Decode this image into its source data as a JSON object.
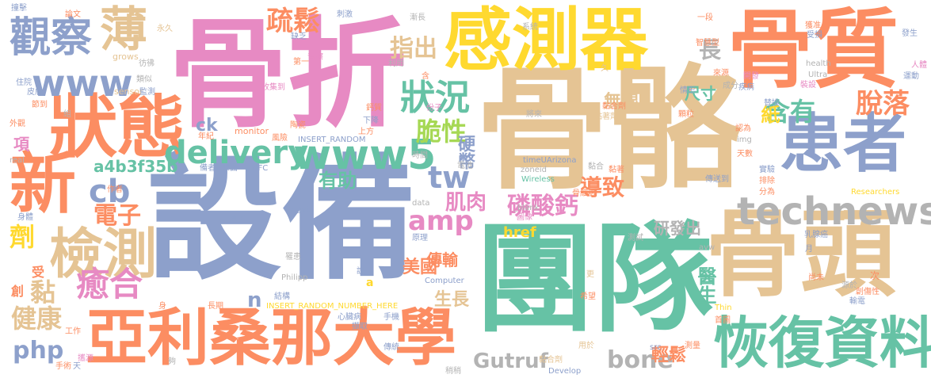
{
  "words": {
    "w_guzhe": "骨折",
    "w_shebei": "設備",
    "w_guge": "骨骼",
    "w_tuandui": "團隊",
    "w_guzhi": "骨質",
    "w_gantou": "骨頭",
    "w_ganceqi": "感測器",
    "w_zhuangtai": "狀態",
    "w_huanzhe": "患者",
    "w_arizona": "亞利桑那大學",
    "w_jiance": "檢測",
    "w_huifu": "恢復資料",
    "w_xin": "新",
    "w_guancha": "觀察",
    "w_bo": "薄",
    "w_www": "www",
    "w_delivery": "delivery",
    "w_www5": "www5",
    "w_technews": "technews",
    "w_zhuangkuang": "狀況",
    "w_cuixing": "脆性",
    "w_shusong": "疏鬆",
    "w_zhichu": "指出",
    "w_hanyou": "含有",
    "w_tuoluo": "脫落",
    "w_chang": "長",
    "w_chicun": "尺寸",
    "w_wuxian": "無線",
    "w_zhi": "紙",
    "w_yingbi": "硬幣",
    "w_ck": "ck",
    "w_cb": "cb",
    "w_xiang": "項",
    "w_hash": "a4b3f35b",
    "w_tw": "tw",
    "w_amp": "amp",
    "w_youzhu": "有助",
    "w_dianzi": "電子",
    "w_jirou": "肌肉",
    "w_linsuangai": "磷酸鈣",
    "w_daozhi": "導致",
    "w_yanfa": "研發出",
    "w_ji": "劑",
    "w_yuhe": "癒合",
    "w_nian": "黏",
    "w_jiankang": "健康",
    "w_php": "php",
    "w_meiguo": "美國",
    "w_href": "href",
    "w_chuanshu": "傳輸",
    "w_shengzhang": "生長",
    "w_yisheng": "醫生",
    "w_gutruf": "Gutruf",
    "w_bone": "bone",
    "w_qingsong": "輕鬆",
    "w_n": "n",
    "w_shou": "受",
    "w_chuang": "創",
    "w_a": "a",
    "s_zhuangji": "撞擊",
    "s_lunwen": "論文",
    "s_ciji": "刺激",
    "s_jianchang": "漸長",
    "s_xitong": "系統",
    "s_yiduan": "一段",
    "s_huozhun": "獲准",
    "s_shousun": "受損",
    "s_fasheng": "發生",
    "s_renlei": "人體",
    "s_yongjiu": "永久",
    "s_grows": "grows",
    "s_fangfo": "彷彿",
    "s_leisi": "類似",
    "s_zhuyuan": "住院",
    "s_sensor": "sensor",
    "s_pifu": "皮膚",
    "s_jiandian": "節到",
    "s_jiance2": "監測",
    "s_monitor": "monitor",
    "s_shoujidao": "收集到",
    "s_quefa": "缺乏",
    "s_diyi": "第一",
    "s_yinxiang": "音擦",
    "s_liyong": "利用",
    "s_han": "含",
    "s_jiu": "久",
    "s_fenzi": "份子",
    "s_jiangshang": "將來",
    "s_gaizhi": "鈣質",
    "s_xiajiang": "下降",
    "s_shangfang": "上方",
    "s_taozi": "陶瓷",
    "s_fengxian": "風險",
    "s_insert": "INSERT_RANDOM",
    "s_niandian": "黏著劑",
    "s_zhuangjuan": "顆粒",
    "s_zhihuixing": "智慧型",
    "s_laiyuan": "來源",
    "s_qingxing": "情形",
    "s_shizhuang": "裝設",
    "s_jibing": "疾病",
    "s_guanbi": "開發",
    "s_chengfen": "成分",
    "s_health": "health",
    "s_ultra": "Ultra",
    "s_yundong": "運動",
    "s_tihuan": "替換",
    "s_img": "img",
    "s_tianshu": "天數",
    "s_renwei": "認為",
    "s_waiguan": "外觀",
    "s_real": "real",
    "s_niandu": "年紀",
    "s_nianheji": "黏合劑",
    "s_shijian": "時間",
    "s_biaomian": "表面",
    "s_diannao": "電腦",
    "s_zuozhe": "作者",
    "s_beizhe": "備者",
    "s_nfc": "NFC",
    "s_timeu": "timeUArizona",
    "s_dianchi": "電池",
    "s_nianhe": "黏合",
    "s_nianzhuo": "黏著",
    "s_wireless": "Wireless",
    "s_zoneid": "zoneid",
    "s_blank": "_blank",
    "s_gutan": "骨細胞",
    "s_tuxiang": "圖像",
    "s_shiyan": "實驗",
    "s_paichu": "排除",
    "s_fenwei": "分為",
    "s_chuansongdao": "傳送到",
    "s_researchers": "Researchers",
    "s_shenti": "身體",
    "s_yuanzi": "原子",
    "s_target": "target",
    "s_data": "data",
    "s_yuanli": "原理",
    "s_luohuan": "罹患",
    "s_cesh": "測試",
    "s_avw": "avw",
    "s_ruxian": "乳腺癌",
    "s_yue": "月",
    "s_shang": "尚未",
    "s_ciji2": "次",
    "s_yuanyu": "源於",
    "s_chuangshang": "創傷性",
    "s_shuodian": "輸電",
    "s_philipp": "Philipp",
    "s_shuo": "說",
    "s_jiegou": "結構",
    "s_computer": "Computer",
    "s_geng": "更",
    "s_shen": "身",
    "s_changqi": "長期",
    "s_insert2": "INSERT_RANDOM_NUMBER_HERE",
    "s_xiwang": "希望",
    "s_thin": "Thin",
    "s_shouji": "手機",
    "s_xinzang": "心臟病",
    "s_shouye": "首圖",
    "s_gongzuo": "工作",
    "s_chuantong": "傳統",
    "s_shoushu": "手術",
    "s_tian": "天",
    "s_xiesu": "攜源",
    "s_qingwen": "擷取",
    "s_gou": "夠",
    "s_shaoke": "稍稍",
    "s_develop": "Develop",
    "s_yongyu": "用於",
    "s_celiang": "測量",
    "s_src": "src",
    "s_nianheji2": "黏合劑",
    "s_zu": "組"
  }
}
